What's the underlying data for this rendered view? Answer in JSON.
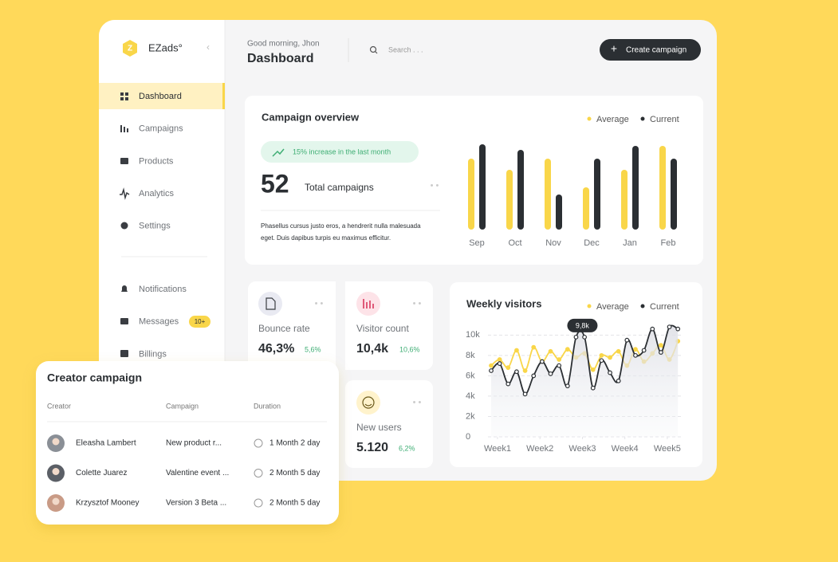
{
  "sidebar": {
    "brand": "EZads°",
    "nav": [
      "Dashboard",
      "Campaigns",
      "Products",
      "Analytics",
      "Settings"
    ],
    "nav2": [
      "Notifications",
      "Messages",
      "Billings"
    ],
    "messages_badge": "10+"
  },
  "header": {
    "greeting": "Good morning, Jhon",
    "title": "Dashboard",
    "search_placeholder": "Search . . .",
    "button": "Create campaign"
  },
  "overview": {
    "trend": "15% increase in the last month",
    "total": 52,
    "total_label": "Total campaigns",
    "description": [
      "Phasellus cursus justo eros, a hendrerit nulla malesuada",
      "eget. Duis dapibus turpis eu maximus efficitur."
    ]
  },
  "stats": [
    {
      "label": "Bounce rate",
      "value": "46,3%",
      "change": "5,6%"
    },
    {
      "label": "Visitor count",
      "value": "10,4k",
      "change": "10,6%"
    },
    {
      "label": "New users",
      "value": "5.120",
      "change": "6,2%"
    }
  ],
  "creator_campaign": {
    "title": "Creator campaign",
    "columns": [
      "Creator",
      "Campaign",
      "Duration"
    ],
    "rows": [
      [
        "Eleasha Lambert",
        "New product r...",
        "1 Month 2 day"
      ],
      [
        "Colette Juarez",
        "Valentine event ...",
        "2 Month 5 day"
      ],
      [
        "Krzysztof Mooney",
        "Version 3 Beta ...",
        "2 Month 5 day"
      ]
    ]
  },
  "chart_data": [
    {
      "type": "bar",
      "title": "Campaign overview",
      "categories": [
        "Sep",
        "Oct",
        "Nov",
        "Dec",
        "Jan",
        "Feb"
      ],
      "series": [
        {
          "name": "Average",
          "color": "#f9d649",
          "values": [
            89,
            75,
            89,
            53,
            75,
            105
          ]
        },
        {
          "name": "Current",
          "color": "#2b2f33",
          "values": [
            107,
            100,
            44,
            89,
            105,
            89
          ]
        }
      ],
      "ylim": [
        0,
        110
      ]
    },
    {
      "type": "line",
      "title": "Weekly visitors",
      "x": [
        0.85,
        1.05,
        1.25,
        1.45,
        1.65,
        1.85,
        2.05,
        2.25,
        2.45,
        2.65,
        2.85,
        3.05,
        3.25,
        3.45,
        3.65,
        3.85,
        4.05,
        4.25,
        4.45,
        4.65,
        4.85,
        5.05,
        5.25
      ],
      "series": [
        {
          "name": "Average",
          "color": "#f9d649",
          "values": [
            7000,
            7600,
            6800,
            8500,
            6500,
            8800,
            7400,
            8400,
            7600,
            8600,
            7800,
            8200,
            6600,
            8000,
            7800,
            8400,
            7000,
            8600,
            7400,
            8200,
            9000,
            7600,
            9400
          ]
        },
        {
          "name": "Current",
          "color": "#2b2f33",
          "values": [
            6500,
            7200,
            5200,
            6400,
            4200,
            6000,
            7400,
            6200,
            7000,
            5000,
            9800,
            9800,
            4800,
            7500,
            6300,
            5500,
            9500,
            8000,
            8500,
            10600,
            8300,
            10800,
            10600
          ]
        }
      ],
      "xlim": [
        0.775,
        5.34
      ],
      "xticks": [
        {
          "value": 1,
          "label": "Week1"
        },
        {
          "value": 2,
          "label": "Week2"
        },
        {
          "value": 3,
          "label": "Week3"
        },
        {
          "value": 4,
          "label": "Week4"
        },
        {
          "value": 5,
          "label": "Week5"
        }
      ],
      "ylim": [
        0,
        11200
      ],
      "yticks": [
        0,
        {
          "value": 2000,
          "label": "2k"
        },
        {
          "value": 4000,
          "label": "4k"
        },
        {
          "value": 6000,
          "label": "6k"
        },
        {
          "value": 8000,
          "label": "8k"
        },
        {
          "value": 10000,
          "label": "10k"
        }
      ],
      "grid": true,
      "annotations": [
        {
          "x": 3.0,
          "y": 9800,
          "text": "9,8k"
        }
      ]
    }
  ]
}
